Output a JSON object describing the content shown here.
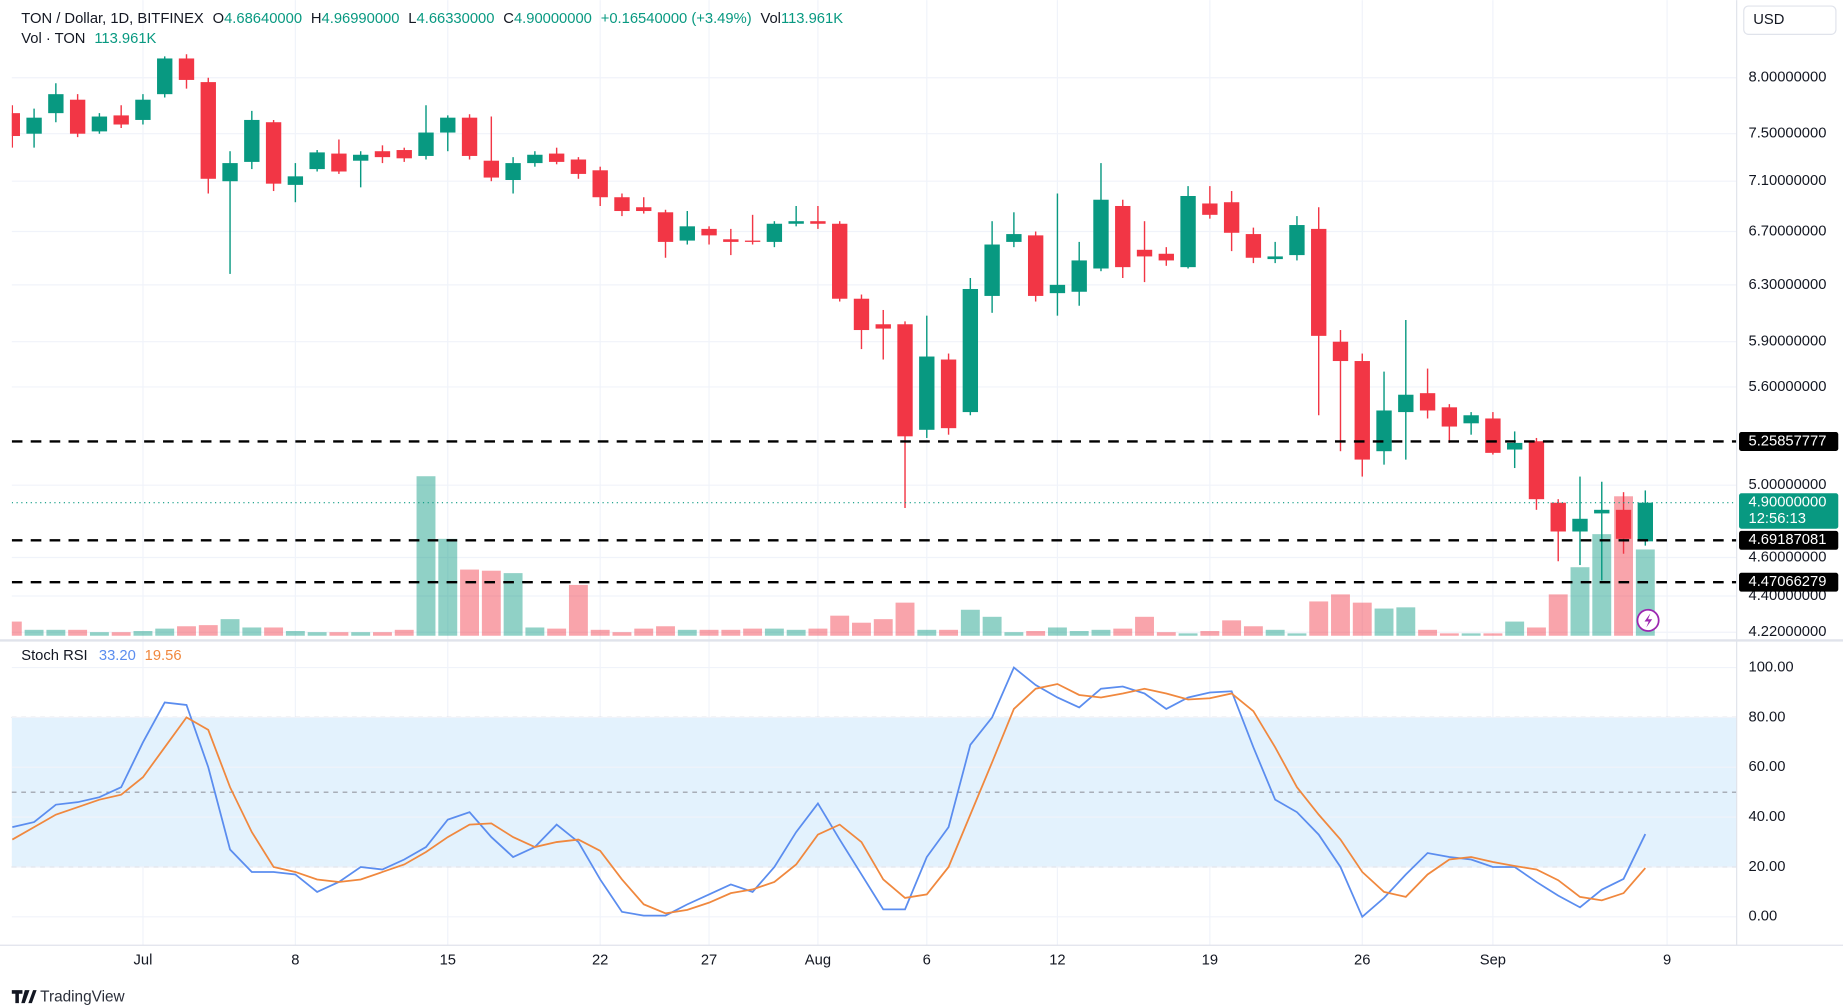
{
  "header": {
    "symbol": "TON / Dollar, 1D, BITFINEX",
    "open_key": "O",
    "open": "4.68640000",
    "high_key": "H",
    "high": "4.96990000",
    "low_key": "L",
    "low": "4.66330000",
    "close_key": "C",
    "close": "4.90000000",
    "change": "+0.16540000 (+3.49%)",
    "vol_key": "Vol",
    "vol": "113.961K",
    "volume_title": "Vol · TON",
    "volume_value": "113.961K",
    "currency": "USD",
    "branding": "TradingView"
  },
  "chart_data": [
    {
      "type": "candlestick",
      "log_scale": true,
      "grid": true,
      "up_color": "#089981",
      "down_color": "#f23645",
      "categories": [
        null,
        null,
        null,
        null,
        null,
        null,
        "Jul",
        null,
        null,
        null,
        null,
        null,
        null,
        "8",
        null,
        null,
        null,
        null,
        null,
        null,
        "15",
        null,
        null,
        null,
        null,
        null,
        null,
        "22",
        null,
        null,
        null,
        null,
        "27",
        null,
        null,
        null,
        null,
        "Aug",
        null,
        null,
        null,
        null,
        "6",
        null,
        null,
        null,
        null,
        null,
        "12",
        null,
        null,
        null,
        null,
        null,
        null,
        "19",
        null,
        null,
        null,
        null,
        null,
        null,
        "26",
        null,
        null,
        null,
        null,
        null,
        "Sep",
        null,
        null,
        null,
        null,
        null,
        null,
        null,
        "9"
      ],
      "open": [
        7.68,
        7.5,
        7.68,
        7.8,
        7.52,
        7.66,
        7.62,
        7.85,
        8.18,
        7.96,
        7.1,
        7.26,
        7.6,
        7.07,
        7.2,
        7.33,
        7.27,
        7.35,
        7.36,
        7.31,
        7.51,
        7.64,
        7.27,
        7.11,
        7.25,
        7.33,
        7.28,
        7.19,
        6.97,
        6.89,
        6.85,
        6.63,
        6.72,
        6.64,
        6.63,
        6.62,
        6.76,
        6.78,
        6.76,
        6.2,
        6.02,
        6.02,
        5.33,
        5.78,
        5.44,
        6.22,
        6.62,
        6.67,
        6.24,
        6.25,
        6.42,
        6.9,
        6.56,
        6.53,
        6.43,
        6.92,
        6.93,
        6.68,
        6.49,
        6.52,
        6.72,
        5.9,
        5.77,
        5.2,
        5.44,
        5.56,
        5.47,
        5.37,
        5.4,
        5.21,
        5.26,
        4.9,
        4.74,
        4.84,
        4.86,
        4.6864,
        null
      ],
      "high": [
        7.75,
        7.72,
        7.95,
        7.85,
        7.68,
        7.75,
        7.85,
        8.2,
        8.22,
        8.0,
        7.35,
        7.7,
        7.62,
        7.25,
        7.36,
        7.45,
        7.35,
        7.4,
        7.38,
        7.75,
        7.66,
        7.67,
        7.65,
        7.3,
        7.35,
        7.38,
        7.3,
        7.22,
        7.0,
        6.97,
        6.87,
        6.86,
        6.74,
        6.72,
        6.83,
        6.78,
        6.9,
        6.9,
        6.78,
        6.23,
        6.12,
        6.04,
        6.08,
        5.82,
        6.35,
        6.78,
        6.85,
        6.7,
        7.0,
        6.62,
        7.25,
        6.95,
        6.78,
        6.58,
        7.06,
        7.06,
        7.02,
        6.73,
        6.62,
        6.82,
        6.89,
        5.98,
        5.82,
        5.7,
        6.05,
        5.72,
        5.49,
        5.44,
        5.44,
        5.32,
        5.28,
        4.92,
        5.05,
        5.02,
        4.96,
        4.9699,
        null
      ],
      "low": [
        7.38,
        7.38,
        7.6,
        7.47,
        7.5,
        7.55,
        7.58,
        7.82,
        7.9,
        7.0,
        6.38,
        7.2,
        7.02,
        6.93,
        7.18,
        7.16,
        7.05,
        7.25,
        7.26,
        7.28,
        7.35,
        7.28,
        7.1,
        7.0,
        7.22,
        7.24,
        7.12,
        6.9,
        6.82,
        6.84,
        6.5,
        6.6,
        6.6,
        6.52,
        6.6,
        6.58,
        6.74,
        6.72,
        6.18,
        5.85,
        5.78,
        4.87,
        5.28,
        5.3,
        5.42,
        6.1,
        6.58,
        6.18,
        6.08,
        6.15,
        6.4,
        6.35,
        6.32,
        6.44,
        6.42,
        6.8,
        6.55,
        6.46,
        6.46,
        6.48,
        5.42,
        5.2,
        5.05,
        5.12,
        5.15,
        5.4,
        5.25,
        5.3,
        5.18,
        5.1,
        4.86,
        4.58,
        4.56,
        4.48,
        4.62,
        4.6633,
        null
      ],
      "close": [
        7.48,
        7.64,
        7.85,
        7.5,
        7.65,
        7.58,
        7.8,
        8.18,
        7.98,
        7.12,
        7.25,
        7.62,
        7.08,
        7.14,
        7.34,
        7.18,
        7.32,
        7.3,
        7.29,
        7.51,
        7.64,
        7.31,
        7.13,
        7.25,
        7.32,
        7.26,
        7.16,
        6.97,
        6.86,
        6.86,
        6.62,
        6.74,
        6.67,
        6.62,
        6.62,
        6.76,
        6.78,
        6.76,
        6.2,
        5.98,
        5.99,
        5.29,
        5.8,
        5.34,
        6.27,
        6.6,
        6.68,
        6.22,
        6.3,
        6.48,
        6.95,
        6.43,
        6.51,
        6.48,
        6.98,
        6.83,
        6.69,
        6.5,
        6.51,
        6.75,
        5.94,
        5.77,
        5.15,
        5.45,
        5.55,
        5.45,
        5.35,
        5.42,
        5.19,
        5.25,
        4.92,
        4.74,
        4.81,
        4.86,
        4.7,
        4.9,
        null
      ],
      "volume": [
        18.7,
        7.8,
        7.8,
        7.8,
        4.7,
        4.7,
        6.2,
        9.4,
        12.5,
        14.0,
        21.9,
        10.9,
        10.9,
        6.2,
        4.7,
        4.7,
        4.7,
        4.7,
        7.8,
        210.7,
        128.0,
        87.4,
        85.9,
        82.7,
        10.9,
        9.4,
        67.1,
        7.8,
        4.7,
        9.4,
        12.5,
        7.8,
        7.8,
        7.8,
        9.4,
        9.4,
        7.8,
        9.4,
        26.5,
        17.2,
        21.9,
        43.7,
        7.8,
        7.8,
        34.3,
        25.0,
        4.7,
        6.2,
        10.9,
        6.2,
        7.8,
        9.4,
        25.0,
        4.7,
        3.1,
        6.2,
        20.3,
        12.5,
        7.8,
        3.1,
        45.3,
        54.6,
        43.7,
        35.9,
        37.5,
        7.8,
        3.1,
        3.1,
        3.1,
        18.7,
        10.9,
        54.6,
        90.5,
        134.2,
        184.2,
        113.961,
        null
      ],
      "ylim": [
        4.203,
        8.69
      ],
      "yticks": [
        {
          "value": 8,
          "label": "8.00000000"
        },
        {
          "value": 7.5,
          "label": "7.50000000"
        },
        {
          "value": 7.1,
          "label": "7.10000000"
        },
        {
          "value": 6.7,
          "label": "6.70000000"
        },
        {
          "value": 6.3,
          "label": "6.30000000"
        },
        {
          "value": 5.9,
          "label": "5.90000000"
        },
        {
          "value": 5.6,
          "label": "5.60000000"
        },
        {
          "value": 5.0,
          "label": "5.00000000"
        },
        {
          "value": 4.6,
          "label": "4.60000000"
        },
        {
          "value": 4.4,
          "label": "4.40000000"
        },
        {
          "value": 4.22,
          "label": "4.22000000"
        }
      ],
      "levels": [
        5.25857777,
        4.69187081,
        4.47066279
      ],
      "last_price": {
        "value": 4.9,
        "label": "4.90000000"
      },
      "countdown": "12:56:13"
    },
    {
      "type": "line",
      "title": "Stoch RSI",
      "ylim": [
        -11.4,
        110.4
      ],
      "yticks": [
        {
          "value": 100,
          "label": "100.00"
        },
        {
          "value": 80,
          "label": "80.00"
        },
        {
          "value": 60,
          "label": "60.00"
        },
        {
          "value": 40,
          "label": "40.00"
        },
        {
          "value": 20,
          "label": "20.00"
        },
        {
          "value": 0,
          "label": "0.00"
        }
      ],
      "levels": [
        80,
        50,
        20
      ],
      "band_color": "#e3f2fd",
      "series": [
        {
          "color": "#5b8def",
          "legend": "33.20",
          "values": [
            36,
            38,
            45,
            46,
            48,
            52,
            70,
            86,
            85,
            60,
            27,
            18,
            18,
            17,
            10,
            14,
            20,
            19,
            23,
            28,
            39,
            42,
            32,
            24,
            28,
            37,
            30,
            15,
            2,
            0.5,
            0.5,
            5,
            9,
            13,
            10,
            20,
            34,
            45.5,
            31,
            17,
            3,
            3,
            24,
            36,
            69,
            80,
            100,
            93,
            88,
            84,
            91.5,
            92.4,
            89.6,
            83.4,
            88,
            90,
            90.5,
            68,
            47,
            42,
            33,
            20,
            0,
            7.6,
            17,
            25.6,
            24,
            23,
            20,
            20,
            14,
            8.5,
            3.8,
            10.9,
            15.2,
            33.2,
            null
          ]
        },
        {
          "color": "#f0883e",
          "legend": "19.56",
          "values": [
            31,
            36,
            41,
            44,
            47,
            49,
            56,
            68,
            80,
            75,
            52,
            34,
            20,
            18,
            15,
            14,
            15,
            18,
            21,
            26,
            32,
            37,
            37.5,
            32,
            28,
            30,
            31,
            26.5,
            15,
            5,
            1.4,
            2.8,
            5.7,
            9.5,
            11,
            14,
            21,
            33,
            37,
            30,
            15,
            7.6,
            9,
            20,
            41,
            62,
            83.4,
            91.5,
            93.4,
            89,
            88,
            89.6,
            91.5,
            89.6,
            87.2,
            87.7,
            89.6,
            82.5,
            68,
            52,
            41,
            31,
            18,
            10,
            8,
            17,
            23,
            24,
            22,
            20.4,
            19,
            14.7,
            8,
            6.6,
            9.5,
            19.56,
            null
          ]
        }
      ]
    }
  ]
}
